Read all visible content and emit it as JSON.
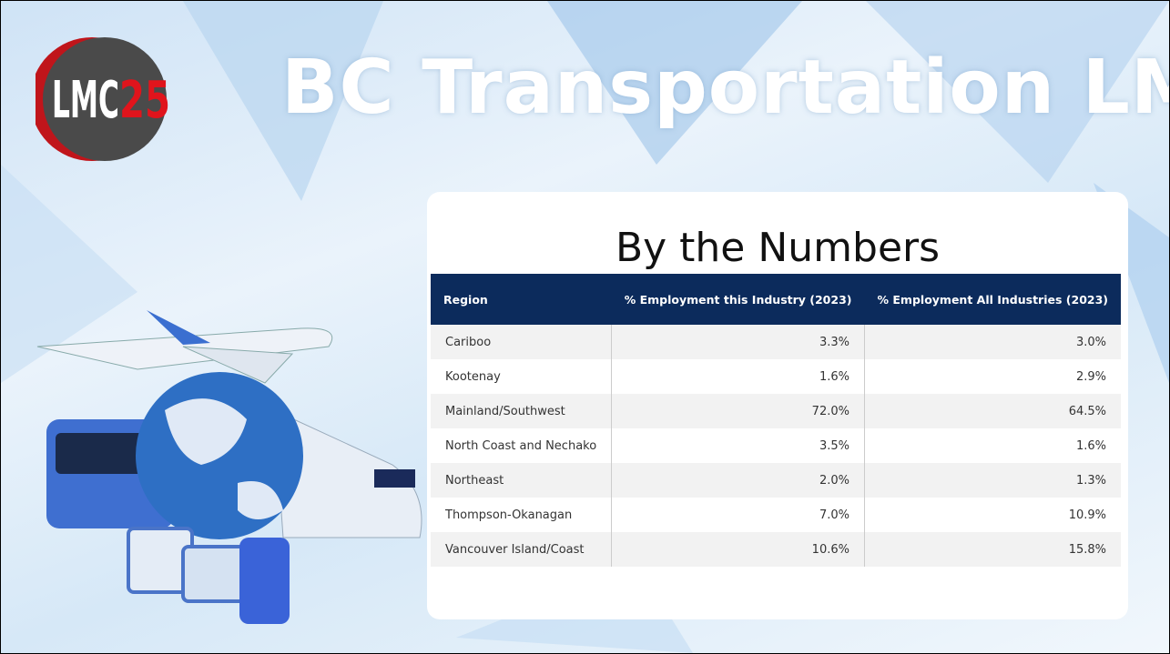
{
  "logo": {
    "letters": "LMC",
    "number": "25"
  },
  "header": {
    "title": "BC Transportation LMI"
  },
  "panel": {
    "title": "By the Numbers"
  },
  "table": {
    "columns": [
      "Region",
      "% Employment this Industry (2023)",
      "% Employment All Industries (2023)"
    ],
    "rows": [
      [
        "Cariboo",
        "3.3%",
        "3.0%"
      ],
      [
        "Kootenay",
        "1.6%",
        "2.9%"
      ],
      [
        "Mainland/Southwest",
        "72.0%",
        "64.5%"
      ],
      [
        "North Coast and Nechako",
        "3.5%",
        "1.6%"
      ],
      [
        "Northeast",
        "2.0%",
        "1.3%"
      ],
      [
        "Thompson-Okanagan",
        "7.0%",
        "10.9%"
      ],
      [
        "Vancouver Island/Coast",
        "10.6%",
        "15.8%"
      ]
    ]
  }
}
